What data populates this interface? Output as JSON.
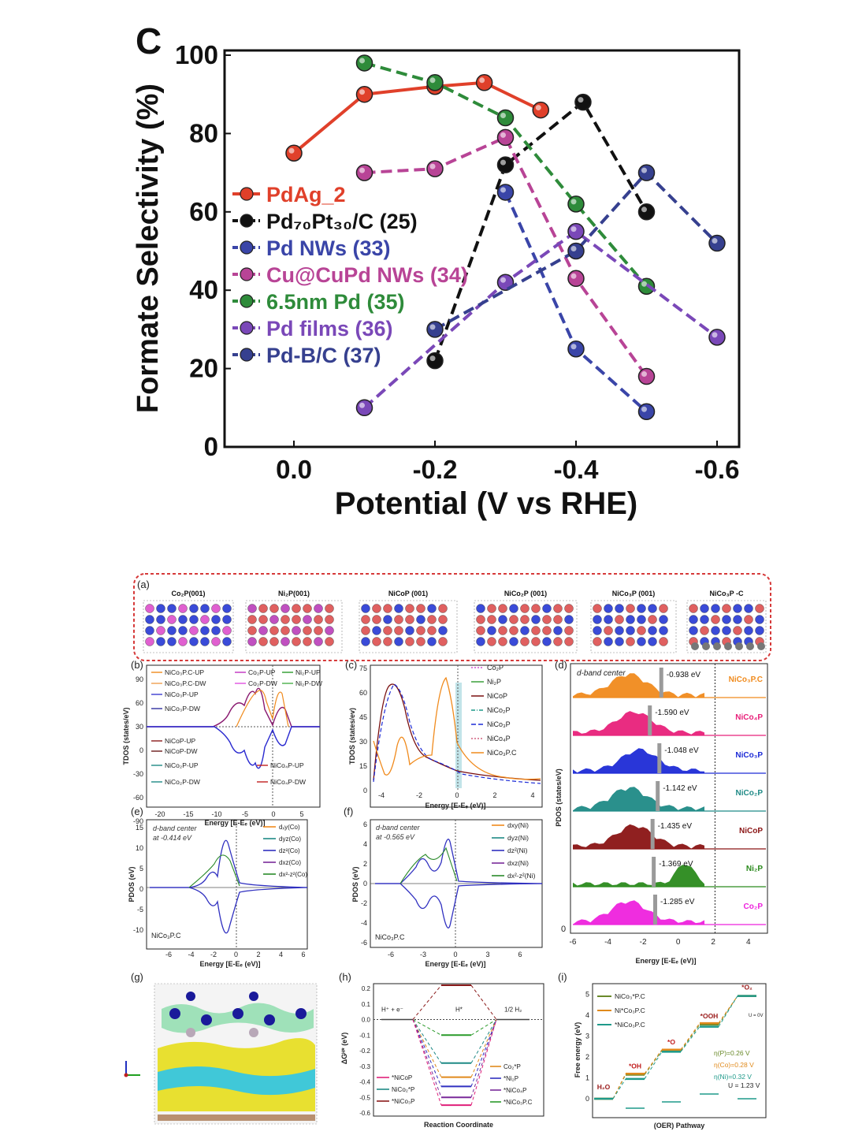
{
  "chart_data": [
    {
      "type": "line",
      "panel_label": "C",
      "title": "",
      "xlabel": "Potential (V vs RHE)",
      "ylabel": "Formate Selectivity (%)",
      "xlim": [
        0.1,
        -0.65
      ],
      "ylim": [
        0,
        100
      ],
      "xticks": [
        "0.0",
        "-0.2",
        "-0.4",
        "-0.6"
      ],
      "xtick_values": [
        0,
        -0.2,
        -0.4,
        -0.6
      ],
      "yticks": [
        "0",
        "20",
        "40",
        "60",
        "80",
        "100"
      ],
      "ytick_values": [
        0,
        20,
        40,
        60,
        80,
        100
      ],
      "legend_position": "center-left",
      "series": [
        {
          "name": "PdAg_2",
          "legend_label": "PdAg_2",
          "color": "#e0402a",
          "line": "solid",
          "x": [
            0.0,
            -0.1,
            -0.2,
            -0.27,
            -0.35
          ],
          "y": [
            75,
            90,
            92,
            93,
            86
          ]
        },
        {
          "name": "Pd70Pt30/C (25)",
          "legend_label": "Pd₇₀Pt₃₀/C (25)",
          "color": "#111111",
          "line": "dashed",
          "x": [
            -0.2,
            -0.3,
            -0.41,
            -0.5
          ],
          "y": [
            22,
            72,
            88,
            60
          ]
        },
        {
          "name": "Pd NWs (33)",
          "legend_label": "Pd NWs (33)",
          "color": "#3a45a8",
          "line": "dashed",
          "x": [
            -0.3,
            -0.4,
            -0.5
          ],
          "y": [
            65,
            25,
            9
          ]
        },
        {
          "name": "Cu@CuPd NWs (34)",
          "legend_label": "Cu@CuPd NWs (34)",
          "color": "#b84496",
          "line": "dashed",
          "x": [
            -0.1,
            -0.2,
            -0.3,
            -0.4,
            -0.5
          ],
          "y": [
            70,
            71,
            79,
            43,
            18
          ]
        },
        {
          "name": "6.5nm Pd (35)",
          "legend_label": "6.5nm Pd (35)",
          "color": "#2e8b3a",
          "line": "dashed",
          "x": [
            -0.1,
            -0.2,
            -0.3,
            -0.4,
            -0.5
          ],
          "y": [
            98,
            93,
            84,
            62,
            41
          ]
        },
        {
          "name": "Pd films (36)",
          "legend_label": "Pd films (36)",
          "color": "#7a48b8",
          "line": "dashed",
          "x": [
            -0.1,
            -0.3,
            -0.4,
            -0.6
          ],
          "y": [
            10,
            42,
            55,
            28
          ]
        },
        {
          "name": "Pd-B/C (37)",
          "legend_label": "Pd-B/C (37)",
          "color": "#36408f",
          "line": "dashed",
          "x": [
            -0.2,
            -0.4,
            -0.5,
            -0.6
          ],
          "y": [
            30,
            50,
            70,
            52
          ]
        }
      ]
    },
    {
      "type": "line",
      "panel_label": "(d)",
      "title": "d-band center",
      "xlabel": "Energy [E-Eₑ (eV)]",
      "ylabel": "PDOS (states/eV)",
      "xticks": [
        "-6",
        "-4",
        "-2",
        "0",
        "2",
        "4"
      ],
      "xtick_values": [
        -6,
        -4,
        -2,
        0,
        2,
        4
      ],
      "ytick_zero": "0",
      "series": [
        {
          "name": "NiCo₃P.C",
          "d_band_center": -0.938,
          "center_label": "-0.938 eV",
          "color": "#f08a1c"
        },
        {
          "name": "NiCo₄P",
          "d_band_center": -1.59,
          "center_label": "-1.590 eV",
          "color": "#e8217a"
        },
        {
          "name": "NiCo₃P",
          "d_band_center": -1.048,
          "center_label": "-1.048 eV",
          "color": "#1d2bd6"
        },
        {
          "name": "NiCo₂P",
          "d_band_center": -1.142,
          "center_label": "-1.142 eV",
          "color": "#1f8a86"
        },
        {
          "name": "NiCoP",
          "d_band_center": -1.435,
          "center_label": "-1.435 eV",
          "color": "#8a1414"
        },
        {
          "name": "Ni₂P",
          "d_band_center": -1.369,
          "center_label": "-1.369 eV",
          "color": "#2a8a1c"
        },
        {
          "name": "Co₂P",
          "d_band_center": -1.285,
          "center_label": "-1.285 eV",
          "color": "#ee22dd"
        }
      ]
    },
    {
      "type": "line",
      "panel_label": "(i)",
      "xlabel": "(OER) Pathway",
      "ylabel": "Free energy (eV)",
      "yticks": [
        "0",
        "1",
        "2",
        "3",
        "4",
        "5"
      ],
      "ytick_values": [
        0,
        1,
        2,
        3,
        4,
        5
      ],
      "steps": [
        "H₂O",
        "*OH",
        "*O",
        "*OOH",
        "*O₂"
      ],
      "series": [
        {
          "name": "NiCo₃*P.C",
          "color": "#6a8a2a",
          "y": [
            0,
            1.15,
            2.3,
            3.55,
            4.92
          ]
        },
        {
          "name": "Ni*Co₃P.C",
          "color": "#e08a1c",
          "y": [
            0,
            1.2,
            2.35,
            3.62,
            4.92
          ]
        },
        {
          "name": "*NiCo₃P.C",
          "color": "#1f9a8a",
          "y": [
            0,
            0.95,
            2.25,
            3.45,
            4.92
          ]
        }
      ],
      "annotations": [
        "η(P)=0.26 V",
        "η(Co)=0.28 V",
        "η(Ni)=0.32 V",
        "U = 1.23 V",
        "U = 0V"
      ]
    }
  ],
  "panels": {
    "a": {
      "label": "(a)",
      "structures": [
        "Co₂P(001)",
        "Ni₂P(001)",
        "NiCoP (001)",
        "NiCo₂P (001)",
        "NiCo₃P (001)",
        "NiCo₃P -C"
      ]
    },
    "b": {
      "label": "(b)",
      "xlabel": "Energy [E-Eₑ (eV)]",
      "ylabel": "TDOS (states/eV)",
      "xticks": [
        "-20",
        "-15",
        "-10",
        "-5",
        "0",
        "5"
      ],
      "yticks": [
        "90",
        "60",
        "30",
        "0",
        "-30",
        "-60",
        "-90"
      ],
      "legend": [
        "NiCo₃P.C-UP",
        "Co₂P-UP",
        "Ni₂P-UP",
        "NiCo₃P.C-DW",
        "Co₂P-DW",
        "Ni₂P-DW",
        "NiCo₃P-UP",
        "NiCo₃P-DW",
        "NiCoP-UP",
        "NiCoP-DW",
        "NiCo₂P-UP",
        "NiCo₄P-UP",
        "NiCo₂P-DW",
        "NiCo₄P-DW"
      ]
    },
    "c": {
      "label": "(c)",
      "xlabel": "Energy [E-Eₑ (eV)]",
      "ylabel": "TDOS (states/ev)",
      "xticks": [
        "-4",
        "-2",
        "0",
        "2",
        "4"
      ],
      "yticks": [
        "75",
        "60",
        "45",
        "30",
        "15",
        "0"
      ],
      "legend": [
        "Co₂P",
        "Ni₂P",
        "NiCoP",
        "NiCo₂P",
        "NiCo₃P",
        "NiCo₄P",
        "NiCo₃P.C"
      ]
    },
    "e": {
      "label": "(e)",
      "note1": "d-band center",
      "note2": "at -0.414 eV",
      "material": "NiCo₃P.C",
      "xlabel": "Energy [E-Eₑ (eV)]",
      "ylabel": "PDOS (eV)",
      "xticks": [
        "-6",
        "-4",
        "-2",
        "0",
        "2",
        "4",
        "6"
      ],
      "yticks": [
        "15",
        "10",
        "5",
        "0",
        "-5",
        "-10"
      ],
      "legend": [
        "dₓy(Co)",
        "dyz(Co)",
        "dz²(Co)",
        "dxz(Co)",
        "dx²-z²(Co)"
      ]
    },
    "f": {
      "label": "(f)",
      "note1": "d-band center",
      "note2": "at -0.565 eV",
      "material": "NiCo₃P.C",
      "xlabel": "Energy [E-Eₑ (eV)]",
      "ylabel": "PDOS (eV)",
      "xticks": [
        "-6",
        "-3",
        "0",
        "3",
        "6"
      ],
      "yticks": [
        "6",
        "4",
        "2",
        "0",
        "-2",
        "-4",
        "-6"
      ],
      "legend": [
        "dxy(Ni)",
        "dyz(Ni)",
        "dz²(Ni)",
        "dxz(Ni)",
        "dx²-z²(Ni)"
      ]
    },
    "g": {
      "label": "(g)"
    },
    "h": {
      "label": "(h)",
      "xlabel": "Reaction Coordinate",
      "ylabel": "ΔGᴴ* (eV)",
      "yticks": [
        "0.2",
        "0.1",
        "0.0",
        "-0.1",
        "-0.2",
        "-0.3",
        "-0.4",
        "-0.5",
        "-0.6"
      ],
      "stages": [
        "H⁺ + e⁻",
        "H*",
        "1/2 H₂"
      ],
      "legend_left": [
        "*NiCoP",
        "NiCo₂*P",
        "*NiCo₃P"
      ],
      "legend_right": [
        "Co₂*P",
        "*Ni₂P",
        "*NiCo₄P",
        "*NiCo₃P.C"
      ]
    }
  }
}
